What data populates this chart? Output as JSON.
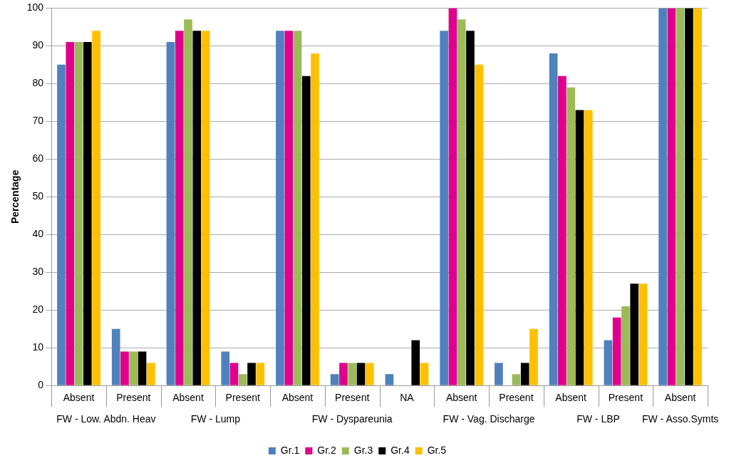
{
  "chart_data": {
    "type": "bar",
    "ylabel": "Percentage",
    "categories": [
      "Absent",
      "Present",
      "Absent",
      "Present",
      "Absent",
      "Present",
      "NA",
      "Absent",
      "Present",
      "Absent",
      "Present",
      "Absent"
    ],
    "series": [
      {
        "name": "Gr.1",
        "color": "#4f81bd",
        "values": [
          85,
          15,
          91,
          9,
          94,
          3,
          3,
          94,
          6,
          88,
          12,
          100
        ]
      },
      {
        "name": "Gr.2",
        "color": "#e0008c",
        "values": [
          91,
          9,
          94,
          6,
          94,
          6,
          0,
          100,
          0,
          82,
          18,
          100
        ]
      },
      {
        "name": "Gr.3",
        "color": "#9bbb59",
        "values": [
          91,
          9,
          97,
          3,
          94,
          6,
          0,
          97,
          3,
          79,
          21,
          100
        ]
      },
      {
        "name": "Gr.4",
        "color": "#000000",
        "values": [
          91,
          9,
          94,
          6,
          82,
          6,
          12,
          94,
          6,
          73,
          27,
          100
        ]
      },
      {
        "name": "Gr.5",
        "color": "#ffc000",
        "values": [
          94,
          6,
          94,
          6,
          88,
          6,
          6,
          85,
          15,
          73,
          27,
          100
        ]
      }
    ],
    "ylim": [
      0,
      100
    ],
    "yticks": [
      0,
      10,
      20,
      30,
      40,
      50,
      60,
      70,
      80,
      90,
      100
    ],
    "grid": "y",
    "legend": "bottom",
    "annotations": [
      "FW - Low. Abdn. Heav",
      "FW - Lump",
      "FW - Dyspareunia",
      "FW - Vag. Discharge",
      "FW - LBP",
      "FW - Asso.Symts"
    ]
  }
}
